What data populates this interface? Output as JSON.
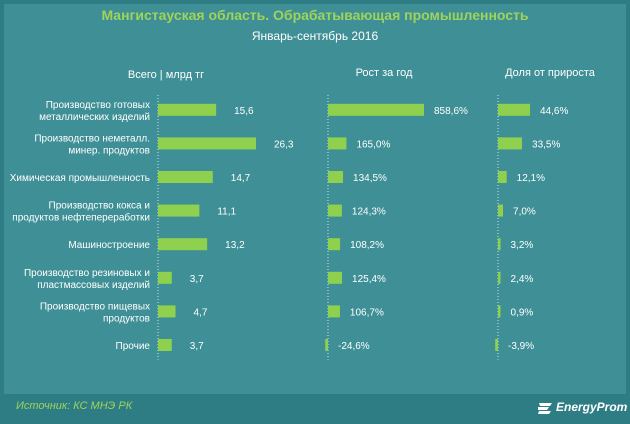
{
  "header": {
    "title": "Мангистауская область. Обрабатывающая промышленность",
    "subtitle": "Январь-сентябрь 2016"
  },
  "columns": {
    "left": "Всего | млрд тг",
    "middle": "Рост за год",
    "right": "Доля от прироста"
  },
  "chart_data": {
    "type": "bar",
    "title": "Мангистауская область. Обрабатывающая промышленность",
    "subtitle": "Январь-сентябрь 2016",
    "categories": [
      [
        "Производство готовых",
        "металлических изделий"
      ],
      [
        "Производство неметалл.",
        "минер. продуктов"
      ],
      [
        "Химическая промышленность"
      ],
      [
        "Производство кокса и",
        "продуктов нефтепереработки"
      ],
      [
        "Машиностроение"
      ],
      [
        "Производство резиновых и",
        "пластмассовых изделий"
      ],
      [
        "Производство пищевых",
        "продуктов"
      ],
      [
        "Прочие"
      ]
    ],
    "series": [
      {
        "name": "Всего | млрд тг",
        "values": [
          15.6,
          26.3,
          14.7,
          11.1,
          13.2,
          3.7,
          4.7,
          3.7
        ],
        "labels": [
          "15,6",
          "26,3",
          "14,7",
          "11,1",
          "13,2",
          "3,7",
          "4,7",
          "3,7"
        ]
      },
      {
        "name": "Рост за год",
        "values": [
          858.6,
          165.0,
          134.5,
          124.3,
          108.2,
          125.4,
          106.7,
          -24.6
        ],
        "labels": [
          "858,6%",
          "165,0%",
          "134,5%",
          "124,3%",
          "108,2%",
          "125,4%",
          "106,7%",
          "-24,6%"
        ]
      },
      {
        "name": "Доля от прироста",
        "values": [
          44.6,
          33.5,
          12.1,
          7.0,
          3.2,
          2.4,
          0.9,
          -3.9
        ],
        "labels": [
          "44,6%",
          "33,5%",
          "12,1%",
          "7,0%",
          "3,2%",
          "2,4%",
          "0,9%",
          "-3,9%"
        ]
      }
    ]
  },
  "footer": {
    "source": "Источник: КС МНЭ РК",
    "logo": "EnergyProm"
  },
  "colors": {
    "background": "#3e8f96",
    "frame": "#2e7d85",
    "bar": "#8fd14f",
    "title": "#9fd35a",
    "axis": "#c9e3e5",
    "text": "#ffffff"
  }
}
